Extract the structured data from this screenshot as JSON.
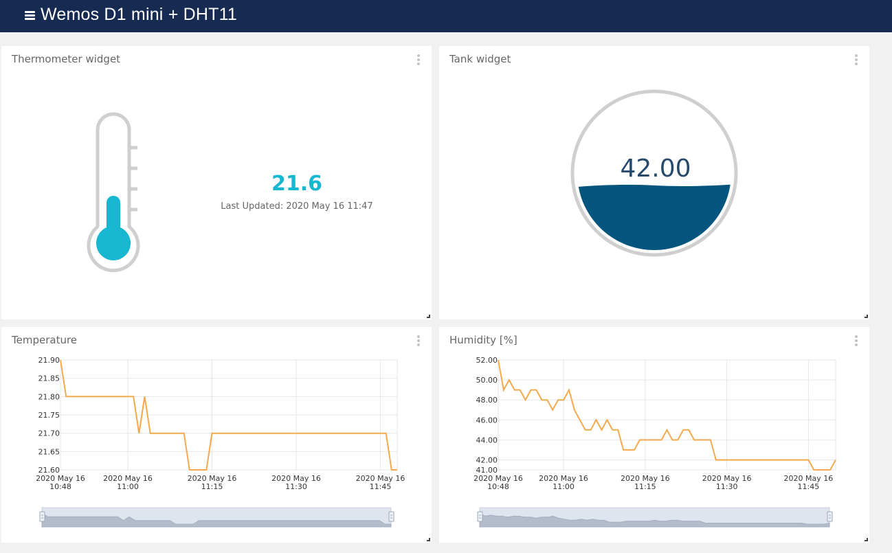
{
  "header": {
    "title": "Wemos D1 mini + DHT11",
    "menu_icon": "hamburger-menu-icon",
    "color": "#172a52"
  },
  "thermometer_widget": {
    "title": "Thermometer widget",
    "value": "21.6",
    "updated_label": "Last Updated: 2020 May 16 11:47",
    "accent_color": "#17b6d1"
  },
  "tank_widget": {
    "title": "Tank widget",
    "value": "42.00",
    "fill_level": 0.42,
    "fill_color": "#04557d"
  },
  "temperature_widget": {
    "title": "Temperature",
    "line_color": "#f5a84c"
  },
  "humidity_widget": {
    "title": "Humidity [%]",
    "line_color": "#f5a84c"
  },
  "chart_data": [
    {
      "type": "line",
      "title": "Temperature",
      "ylim": [
        21.6,
        21.9
      ],
      "yticks": [
        "21.90",
        "21.85",
        "21.80",
        "21.75",
        "21.70",
        "21.65",
        "21.60"
      ],
      "xticks": [
        {
          "t": "10:48",
          "label": [
            "2020 May 16",
            "10:48"
          ]
        },
        {
          "t": "11:00",
          "label": [
            "2020 May 16",
            "11:00"
          ]
        },
        {
          "t": "11:15",
          "label": [
            "2020 May 16",
            "11:15"
          ]
        },
        {
          "t": "11:30",
          "label": [
            "2020 May 16",
            "11:30"
          ]
        },
        {
          "t": "11:45",
          "label": [
            "2020 May 16",
            "11:45"
          ]
        }
      ],
      "xrange": [
        "10:48",
        "11:48"
      ],
      "grid": true,
      "series": [
        {
          "x": [
            "10:48",
            "10:48",
            "10:49",
            "11:01",
            "11:02",
            "11:03",
            "11:03",
            "11:04",
            "11:10",
            "11:11",
            "11:13",
            "11:14",
            "11:15",
            "11:46",
            "11:47",
            "11:48"
          ],
          "values": [
            21.9,
            21.9,
            21.8,
            21.8,
            21.7,
            21.8,
            21.8,
            21.7,
            21.7,
            21.6,
            21.6,
            21.6,
            21.7,
            21.7,
            21.6,
            21.6
          ]
        }
      ]
    },
    {
      "type": "line",
      "title": "Humidity [%]",
      "ylim": [
        41,
        52
      ],
      "yticks": [
        "52.00",
        "50.00",
        "48.00",
        "46.00",
        "44.00",
        "42.00",
        "41.00"
      ],
      "xticks": [
        {
          "t": "10:48",
          "label": [
            "2020 May 16",
            "10:48"
          ]
        },
        {
          "t": "11:00",
          "label": [
            "2020 May 16",
            "11:00"
          ]
        },
        {
          "t": "11:15",
          "label": [
            "2020 May 16",
            "11:15"
          ]
        },
        {
          "t": "11:30",
          "label": [
            "2020 May 16",
            "11:30"
          ]
        },
        {
          "t": "11:45",
          "label": [
            "2020 May 16",
            "11:45"
          ]
        }
      ],
      "xrange": [
        "10:48",
        "11:50"
      ],
      "grid": true,
      "series": [
        {
          "x": [
            "10:48",
            "10:49",
            "10:50",
            "10:51",
            "10:52",
            "10:53",
            "10:54",
            "10:55",
            "10:56",
            "10:57",
            "10:58",
            "10:59",
            "11:00",
            "11:01",
            "11:02",
            "11:03",
            "11:04",
            "11:05",
            "11:06",
            "11:07",
            "11:08",
            "11:09",
            "11:10",
            "11:11",
            "11:12",
            "11:13",
            "11:14",
            "11:15",
            "11:16",
            "11:17",
            "11:18",
            "11:19",
            "11:20",
            "11:21",
            "11:22",
            "11:23",
            "11:24",
            "11:25",
            "11:26",
            "11:27",
            "11:28",
            "11:29",
            "11:30",
            "11:45",
            "11:46",
            "11:49",
            "11:50"
          ],
          "values": [
            52,
            49,
            50,
            49,
            49,
            48,
            49,
            49,
            48,
            48,
            47,
            48,
            48,
            49,
            47,
            46,
            45,
            45,
            46,
            45,
            46,
            45,
            45,
            43,
            43,
            43,
            44,
            44,
            44,
            44,
            44,
            45,
            44,
            44,
            45,
            45,
            44,
            44,
            44,
            44,
            42,
            42,
            42,
            42,
            41,
            41,
            42
          ]
        }
      ]
    }
  ]
}
